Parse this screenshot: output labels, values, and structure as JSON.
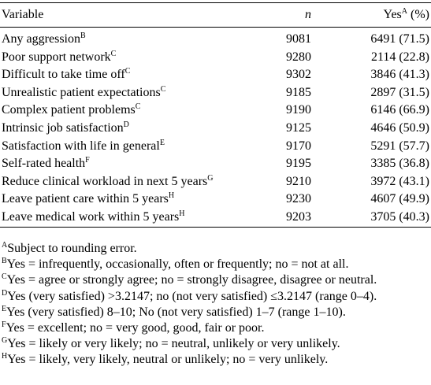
{
  "table": {
    "headers": {
      "variable": "Variable",
      "n": "n",
      "yes": "Yes",
      "yes_sup": "A",
      "yes_suffix": " (%)"
    },
    "rows": [
      {
        "variable": "Any aggression",
        "sup": "B",
        "n": "9081",
        "yes": "6491 (71.5)"
      },
      {
        "variable": "Poor support network",
        "sup": "C",
        "n": "9280",
        "yes": "2114 (22.8)"
      },
      {
        "variable": "Difficult to take time off",
        "sup": "C",
        "n": "9302",
        "yes": "3846 (41.3)"
      },
      {
        "variable": "Unrealistic patient expectations",
        "sup": "C",
        "n": "9185",
        "yes": "2897 (31.5)"
      },
      {
        "variable": "Complex patient problems",
        "sup": "C",
        "n": "9190",
        "yes": "6146 (66.9)"
      },
      {
        "variable": "Intrinsic job satisfaction",
        "sup": "D",
        "n": "9125",
        "yes": "4646 (50.9)"
      },
      {
        "variable": "Satisfaction with life in general",
        "sup": "E",
        "n": "9170",
        "yes": "5291 (57.7)"
      },
      {
        "variable": "Self-rated health",
        "sup": "F",
        "n": "9195",
        "yes": "3385 (36.8)"
      },
      {
        "variable": "Reduce clinical workload in next 5 years",
        "sup": "G",
        "n": "9210",
        "yes": "3972 (43.1)"
      },
      {
        "variable": "Leave patient care within 5 years",
        "sup": "H",
        "n": "9230",
        "yes": "4607 (49.9)"
      },
      {
        "variable": "Leave medical work within 5 years",
        "sup": "H",
        "n": "9203",
        "yes": "3705 (40.3)"
      }
    ]
  },
  "footnotes": [
    {
      "mark": "A",
      "text": "Subject to rounding error."
    },
    {
      "mark": "B",
      "text": "Yes = infrequently, occasionally, often or frequently; no = not at all."
    },
    {
      "mark": "C",
      "text": "Yes = agree or strongly agree; no = strongly disagree, disagree or neutral."
    },
    {
      "mark": "D",
      "text": "Yes (very satisfied) >3.2147; no (not very satisfied) ≤3.2147 (range 0–4)."
    },
    {
      "mark": "E",
      "text": "Yes (very satisfied) 8–10; No (not very satisfied) 1–7 (range 1–10)."
    },
    {
      "mark": "F",
      "text": "Yes = excellent; no = very good, good, fair or poor."
    },
    {
      "mark": "G",
      "text": "Yes = likely or very likely; no = neutral, unlikely or very unlikely."
    },
    {
      "mark": "H",
      "text": "Yes = likely, very likely, neutral or unlikely; no = very unlikely."
    }
  ]
}
